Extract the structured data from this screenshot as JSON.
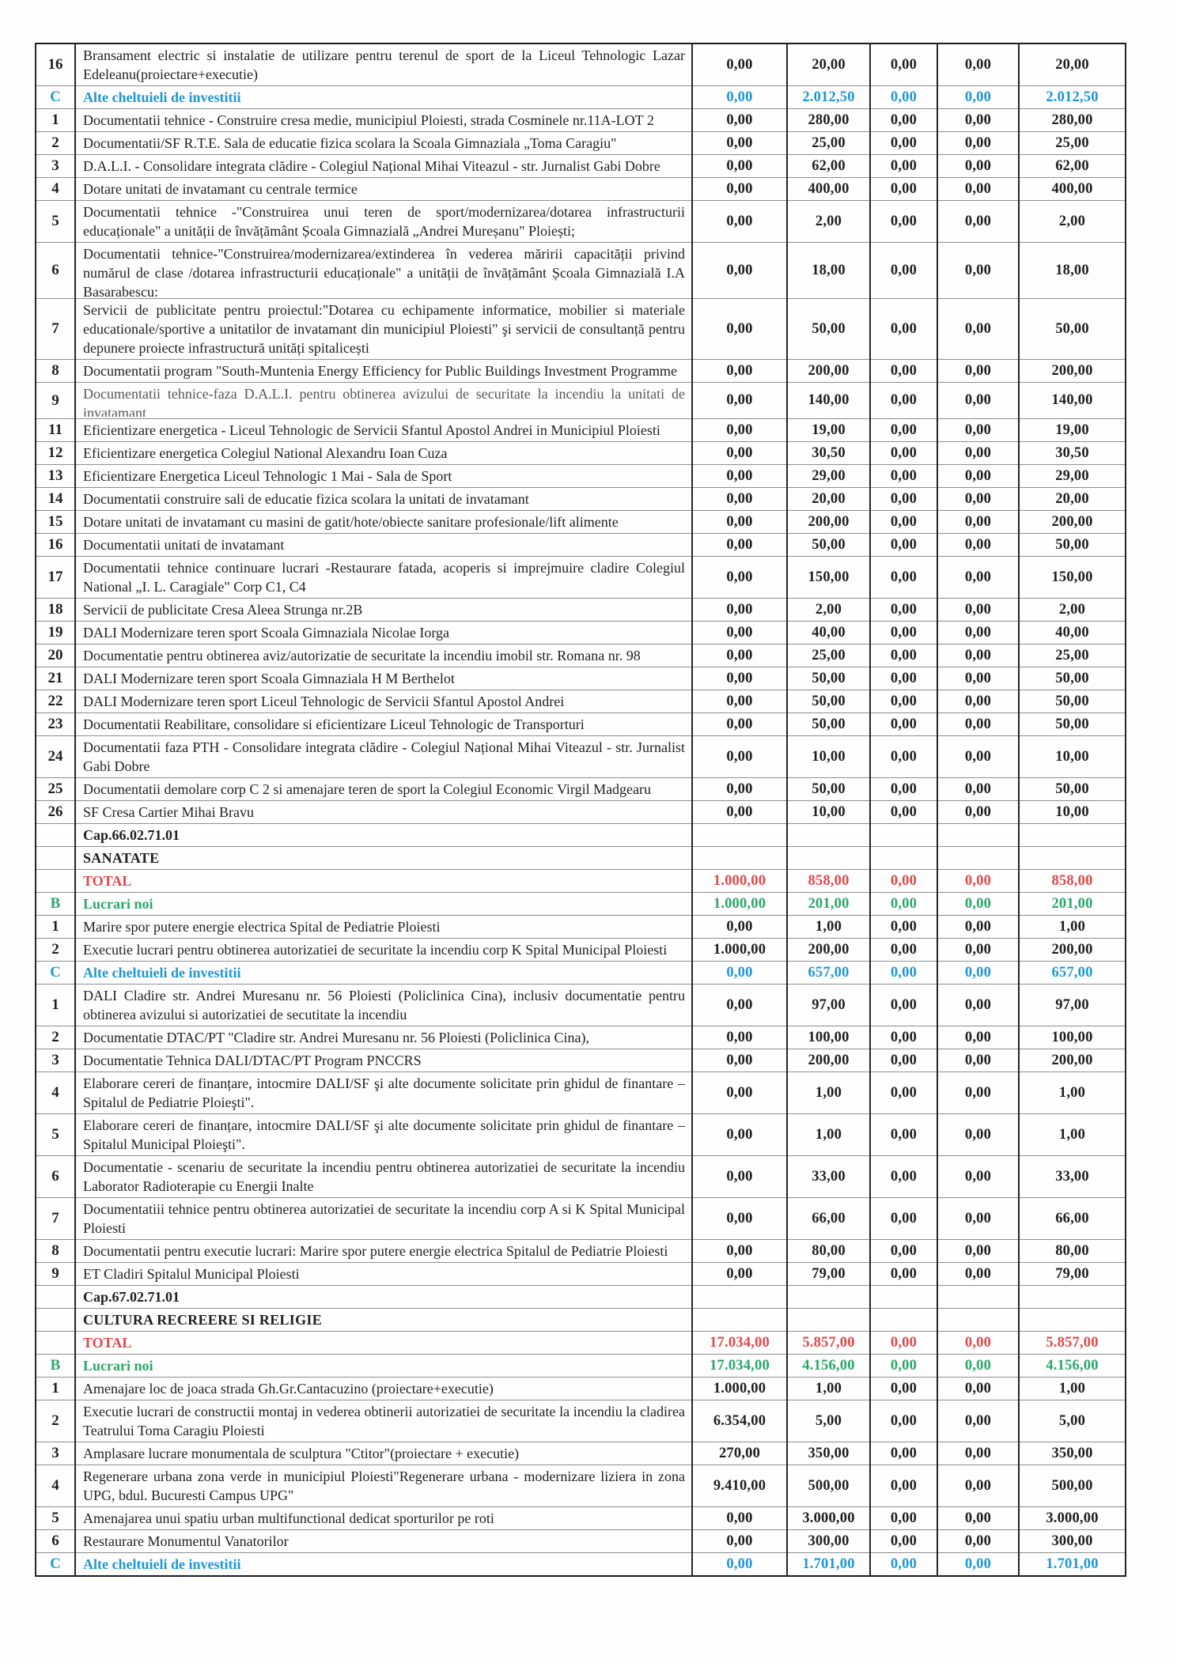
{
  "colors": {
    "blue": "#1f97d4",
    "red": "#e2484c",
    "green": "#2aa768"
  },
  "rows": [
    {
      "num": "16",
      "type": "item",
      "desc": "Bransament electric si instalatie de utilizare pentru terenul de sport de la Liceul Tehnologic Lazar Edeleanu(proiectare+executie)",
      "values": [
        "0,00",
        "20,00",
        "0,00",
        "0,00",
        "20,00"
      ]
    },
    {
      "num": "C",
      "type": "sub",
      "desc": "Alte cheltuieli de investitii",
      "values": [
        "0,00",
        "2.012,50",
        "0,00",
        "0,00",
        "2.012,50"
      ]
    },
    {
      "num": "1",
      "type": "item",
      "desc": "Documentatii tehnice - Construire cresa medie, municipiul Ploiesti, strada Cosminele nr.11A-LOT 2",
      "values": [
        "0,00",
        "280,00",
        "0,00",
        "0,00",
        "280,00"
      ]
    },
    {
      "num": "2",
      "type": "item",
      "desc": "Documentatii/SF R.T.E. Sala de educatie fizica scolara la Scoala Gimnaziala „Toma Caragiu\"",
      "values": [
        "0,00",
        "25,00",
        "0,00",
        "0,00",
        "25,00"
      ]
    },
    {
      "num": "3",
      "type": "item",
      "desc": "D.A.L.I. - Consolidare integrata clădire - Colegiul Național Mihai Viteazul - str. Jurnalist Gabi Dobre",
      "values": [
        "0,00",
        "62,00",
        "0,00",
        "0,00",
        "62,00"
      ]
    },
    {
      "num": "4",
      "type": "item",
      "desc": "Dotare unitati de invatamant cu centrale termice",
      "values": [
        "0,00",
        "400,00",
        "0,00",
        "0,00",
        "400,00"
      ]
    },
    {
      "num": "5",
      "type": "item",
      "desc": "Documentatii tehnice -\"Construirea unui teren de sport/modernizarea/dotarea infrastructurii educaționale\" a unității de învățământ Școala Gimnazială „Andrei Mureșanu\" Ploiești;",
      "values": [
        "0,00",
        "2,00",
        "0,00",
        "0,00",
        "2,00"
      ]
    },
    {
      "num": "6",
      "type": "item",
      "clip": 3,
      "desc": "Documentatii tehnice-\"Construirea/modernizarea/extinderea în vederea măririi capacității privind numărul de clase /dotarea infrastructurii educaționale\" a unității de învățământ Școala Gimnazială I.A Basarabescu:",
      "values": [
        "0,00",
        "18,00",
        "0,00",
        "0,00",
        "18,00"
      ]
    },
    {
      "num": "7",
      "type": "item",
      "desc": "Servicii de publicitate pentru proiectul:\"Dotarea cu echipamente informatice, mobilier si materiale educationale/sportive a unitatilor de invatamant din municipiul Ploiesti\" şi servicii de consultanță pentru depunere proiecte infrastructură unități spitalicești",
      "values": [
        "0,00",
        "50,00",
        "0,00",
        "0,00",
        "50,00"
      ]
    },
    {
      "num": "8",
      "type": "item",
      "desc": "Documentatii program \"South-Muntenia Energy Efficiency for Public Buildings Investment Programme",
      "values": [
        "0,00",
        "200,00",
        "0,00",
        "0,00",
        "200,00"
      ]
    },
    {
      "num": "9",
      "type": "item",
      "clip": 2,
      "faded": true,
      "desc": "Documentatii tehnice-faza D.A.L.I. pentru obtinerea avizului de securitate la incendiu la unitati de invatamant",
      "values": [
        "0,00",
        "140,00",
        "0,00",
        "0,00",
        "140,00"
      ]
    },
    {
      "num": "11",
      "type": "item",
      "desc": "Eficientizare energetica - Liceul Tehnologic de Servicii Sfantul Apostol Andrei in Municipiul Ploiesti",
      "values": [
        "0,00",
        "19,00",
        "0,00",
        "0,00",
        "19,00"
      ]
    },
    {
      "num": "12",
      "type": "item",
      "desc": "Eficientizare energetica Colegiul National Alexandru Ioan Cuza",
      "values": [
        "0,00",
        "30,50",
        "0,00",
        "0,00",
        "30,50"
      ]
    },
    {
      "num": "13",
      "type": "item",
      "desc": "Eficientizare Energetica Liceul Tehnologic 1 Mai - Sala de Sport",
      "values": [
        "0,00",
        "29,00",
        "0,00",
        "0,00",
        "29,00"
      ]
    },
    {
      "num": "14",
      "type": "item",
      "desc": "Documentatii construire sali de educatie fizica scolara la unitati de invatamant",
      "values": [
        "0,00",
        "20,00",
        "0,00",
        "0,00",
        "20,00"
      ]
    },
    {
      "num": "15",
      "type": "item",
      "desc": "Dotare unitati de invatamant cu masini de gatit/hote/obiecte sanitare profesionale/lift alimente",
      "values": [
        "0,00",
        "200,00",
        "0,00",
        "0,00",
        "200,00"
      ]
    },
    {
      "num": "16",
      "type": "item",
      "desc": "Documentatii unitati de invatamant",
      "values": [
        "0,00",
        "50,00",
        "0,00",
        "0,00",
        "50,00"
      ]
    },
    {
      "num": "17",
      "type": "item",
      "desc": "Documentatii tehnice continuare lucrari -Restaurare fatada, acoperis si imprejmuire cladire Colegiul National „I. L. Caragiale\" Corp C1, C4",
      "values": [
        "0,00",
        "150,00",
        "0,00",
        "0,00",
        "150,00"
      ]
    },
    {
      "num": "18",
      "type": "item",
      "desc": "Servicii de publicitate Cresa Aleea Strunga nr.2B",
      "values": [
        "0,00",
        "2,00",
        "0,00",
        "0,00",
        "2,00"
      ]
    },
    {
      "num": "19",
      "type": "item",
      "desc": "DALI Modernizare teren sport Scoala Gimnaziala Nicolae Iorga",
      "values": [
        "0,00",
        "40,00",
        "0,00",
        "0,00",
        "40,00"
      ]
    },
    {
      "num": "20",
      "type": "item",
      "desc": "Documentatie pentru obtinerea aviz/autorizatie de securitate la incendiu imobil str. Romana nr. 98",
      "values": [
        "0,00",
        "25,00",
        "0,00",
        "0,00",
        "25,00"
      ]
    },
    {
      "num": "21",
      "type": "item",
      "desc": "DALI Modernizare teren sport Scoala Gimnaziala H M Berthelot",
      "values": [
        "0,00",
        "50,00",
        "0,00",
        "0,00",
        "50,00"
      ]
    },
    {
      "num": "22",
      "type": "item",
      "desc": "DALI Modernizare teren sport Liceul Tehnologic de Servicii Sfantul Apostol Andrei",
      "values": [
        "0,00",
        "50,00",
        "0,00",
        "0,00",
        "50,00"
      ]
    },
    {
      "num": "23",
      "type": "item",
      "desc": "Documentatii Reabilitare, consolidare si eficientizare Liceul Tehnologic de Transporturi",
      "values": [
        "0,00",
        "50,00",
        "0,00",
        "0,00",
        "50,00"
      ]
    },
    {
      "num": "24",
      "type": "item",
      "desc": "Documentatii faza PTH - Consolidare integrata clădire - Colegiul Național Mihai Viteazul - str. Jurnalist Gabi Dobre",
      "values": [
        "0,00",
        "10,00",
        "0,00",
        "0,00",
        "10,00"
      ]
    },
    {
      "num": "25",
      "type": "item",
      "desc": "Documentatii demolare corp C 2 si amenajare teren de sport la Colegiul Economic Virgil Madgearu",
      "values": [
        "0,00",
        "50,00",
        "0,00",
        "0,00",
        "50,00"
      ]
    },
    {
      "num": "26",
      "type": "item",
      "desc": "SF Cresa Cartier Mihai Bravu",
      "values": [
        "0,00",
        "10,00",
        "0,00",
        "0,00",
        "10,00"
      ]
    },
    {
      "num": "",
      "type": "cap",
      "desc": "Cap.66.02.71.01",
      "values": [
        "",
        "",
        "",
        "",
        ""
      ]
    },
    {
      "num": "",
      "type": "section",
      "desc": "SANATATE",
      "values": [
        "",
        "",
        "",
        "",
        ""
      ]
    },
    {
      "num": "",
      "type": "total",
      "desc": "TOTAL",
      "values": [
        "1.000,00",
        "858,00",
        "0,00",
        "0,00",
        "858,00"
      ]
    },
    {
      "num": "B",
      "type": "lucrari",
      "desc": "Lucrari noi",
      "values": [
        "1.000,00",
        "201,00",
        "0,00",
        "0,00",
        "201,00"
      ]
    },
    {
      "num": "1",
      "type": "item",
      "desc": "Marire spor putere energie electrica Spital de Pediatrie Ploiesti",
      "values": [
        "0,00",
        "1,00",
        "0,00",
        "0,00",
        "1,00"
      ]
    },
    {
      "num": "2",
      "type": "item",
      "desc": "Executie lucrari pentru obtinerea autorizatiei de securitate la incendiu corp K Spital Municipal Ploiesti",
      "values": [
        "1.000,00",
        "200,00",
        "0,00",
        "0,00",
        "200,00"
      ]
    },
    {
      "num": "C",
      "type": "sub",
      "desc": "Alte cheltuieli de investitii",
      "values": [
        "0,00",
        "657,00",
        "0,00",
        "0,00",
        "657,00"
      ]
    },
    {
      "num": "1",
      "type": "item",
      "desc": "DALI Cladire str. Andrei Muresanu nr. 56 Ploiesti (Policlinica Cina), inclusiv documentatie pentru obtinerea avizului si autorizatiei de secutitate la incendiu",
      "values": [
        "0,00",
        "97,00",
        "0,00",
        "0,00",
        "97,00"
      ]
    },
    {
      "num": "2",
      "type": "item",
      "desc": "Documentatie DTAC/PT \"Cladire str. Andrei Muresanu nr. 56 Ploiesti (Policlinica Cina),",
      "values": [
        "0,00",
        "100,00",
        "0,00",
        "0,00",
        "100,00"
      ]
    },
    {
      "num": "3",
      "type": "item",
      "desc": "Documentatie Tehnica DALI/DTAC/PT Program PNCCRS",
      "values": [
        "0,00",
        "200,00",
        "0,00",
        "0,00",
        "200,00"
      ]
    },
    {
      "num": "4",
      "type": "item",
      "desc": "Elaborare cereri de finanțare, intocmire DALI/SF şi alte documente solicitate prin ghidul de finantare – Spitalul de Pediatrie Ploieşti\".",
      "values": [
        "0,00",
        "1,00",
        "0,00",
        "0,00",
        "1,00"
      ]
    },
    {
      "num": "5",
      "type": "item",
      "desc": "Elaborare cereri de finanțare, intocmire DALI/SF şi alte documente solicitate prin ghidul de finantare – Spitalul Municipal Ploieşti\".",
      "values": [
        "0,00",
        "1,00",
        "0,00",
        "0,00",
        "1,00"
      ]
    },
    {
      "num": "6",
      "type": "item",
      "desc": "Documentatie - scenariu de securitate la incendiu  pentru obtinerea autorizatiei de securitate la incendiu Laborator Radioterapie cu Energii Inalte",
      "values": [
        "0,00",
        "33,00",
        "0,00",
        "0,00",
        "33,00"
      ]
    },
    {
      "num": "7",
      "type": "item",
      "desc": "Documentatiii tehnice pentru obtinerea autorizatiei de securitate la incendiu corp A si K Spital Municipal Ploiesti",
      "values": [
        "0,00",
        "66,00",
        "0,00",
        "0,00",
        "66,00"
      ]
    },
    {
      "num": "8",
      "type": "item",
      "desc": "Documentatii pentru executie lucrari: Marire spor putere energie electrica Spitalul de Pediatrie Ploiesti",
      "values": [
        "0,00",
        "80,00",
        "0,00",
        "0,00",
        "80,00"
      ]
    },
    {
      "num": "9",
      "type": "item",
      "desc": "ET Cladiri Spitalul Municipal Ploiesti",
      "values": [
        "0,00",
        "79,00",
        "0,00",
        "0,00",
        "79,00"
      ]
    },
    {
      "num": "",
      "type": "cap",
      "desc": "Cap.67.02.71.01",
      "values": [
        "",
        "",
        "",
        "",
        ""
      ]
    },
    {
      "num": "",
      "type": "section",
      "desc": "CULTURA RECREERE SI RELIGIE",
      "values": [
        "",
        "",
        "",
        "",
        ""
      ]
    },
    {
      "num": "",
      "type": "total",
      "desc": "TOTAL",
      "values": [
        "17.034,00",
        "5.857,00",
        "0,00",
        "0,00",
        "5.857,00"
      ]
    },
    {
      "num": "B",
      "type": "lucrari",
      "desc": "Lucrari noi",
      "values": [
        "17.034,00",
        "4.156,00",
        "0,00",
        "0,00",
        "4.156,00"
      ]
    },
    {
      "num": "1",
      "type": "item",
      "desc": "Amenajare loc de joaca strada Gh.Gr.Cantacuzino (proiectare+executie)",
      "values": [
        "1.000,00",
        "1,00",
        "0,00",
        "0,00",
        "1,00"
      ]
    },
    {
      "num": "2",
      "type": "item",
      "desc": "Executie lucrari de constructii montaj in vederea obtinerii autorizatiei de securitate la incendiu la cladirea Teatrului Toma Caragiu Ploiesti",
      "values": [
        "6.354,00",
        "5,00",
        "0,00",
        "0,00",
        "5,00"
      ]
    },
    {
      "num": "3",
      "type": "item",
      "desc": "Amplasare lucrare monumentala de sculptura \"Ctitor\"(proiectare + executie)",
      "values": [
        "270,00",
        "350,00",
        "0,00",
        "0,00",
        "350,00"
      ]
    },
    {
      "num": "4",
      "type": "item",
      "desc": "Regenerare urbana zona verde in municipiul Ploiesti\"Regenerare urbana - modernizare liziera in zona UPG, bdul. Bucuresti Campus UPG\"",
      "values": [
        "9.410,00",
        "500,00",
        "0,00",
        "0,00",
        "500,00"
      ]
    },
    {
      "num": "5",
      "type": "item",
      "desc": "Amenajarea unui spatiu urban multifunctional dedicat sporturilor pe roti",
      "values": [
        "0,00",
        "3.000,00",
        "0,00",
        "0,00",
        "3.000,00"
      ]
    },
    {
      "num": "6",
      "type": "item",
      "desc": "Restaurare Monumentul Vanatorilor",
      "values": [
        "0,00",
        "300,00",
        "0,00",
        "0,00",
        "300,00"
      ]
    },
    {
      "num": "C",
      "type": "sub",
      "desc": "Alte cheltuieli de investitii",
      "values": [
        "0,00",
        "1.701,00",
        "0,00",
        "0,00",
        "1.701,00"
      ]
    }
  ]
}
